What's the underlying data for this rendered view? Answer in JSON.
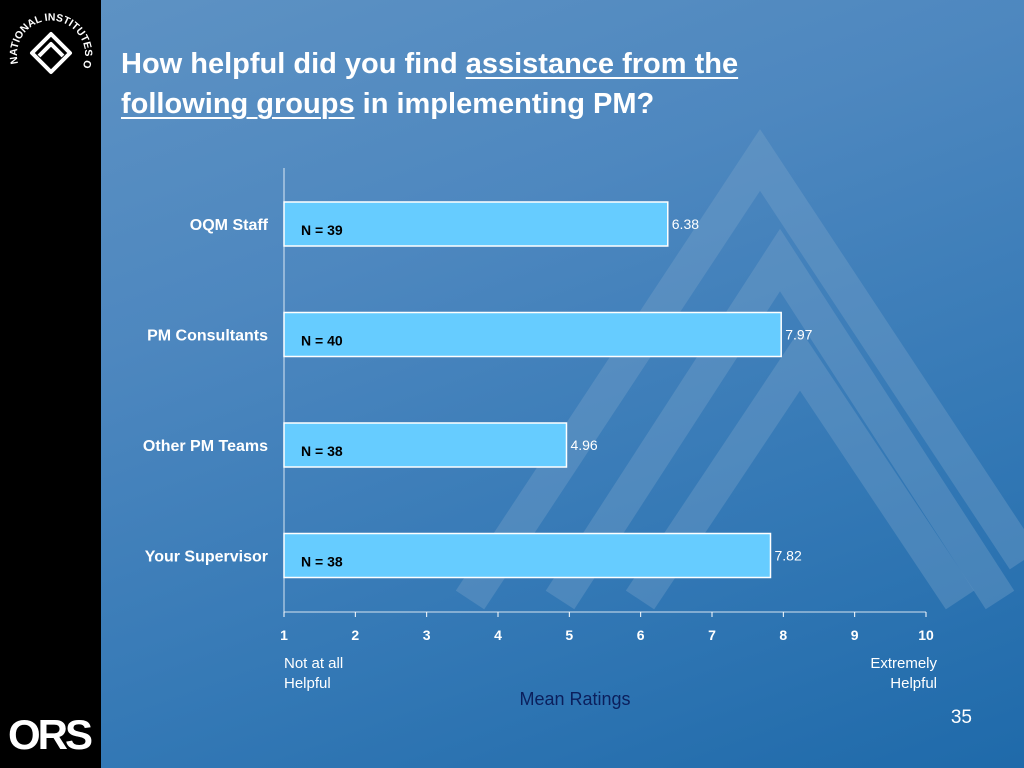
{
  "title": {
    "part1": "How helpful did you find ",
    "underline1": "assistance from the",
    "underline2": "following groups",
    "part2": " in implementing PM?"
  },
  "logos": {
    "seal_text": "NATIONAL INSTITUTES OF HEALTH",
    "ors": "ORS"
  },
  "chart_data": {
    "type": "bar",
    "orientation": "horizontal",
    "categories": [
      "OQM Staff",
      "PM Consultants",
      "Other PM Teams",
      "Your Supervisor"
    ],
    "values": [
      6.38,
      7.97,
      4.96,
      7.82
    ],
    "value_labels": [
      "6.38",
      "7.97",
      "4.96",
      "7.82"
    ],
    "n_labels": [
      "N = 39",
      "N = 40",
      "N = 38",
      "N = 38"
    ],
    "xlim": [
      1,
      10
    ],
    "xticks": [
      1,
      2,
      3,
      4,
      5,
      6,
      7,
      8,
      9,
      10
    ],
    "xlabel": "Mean Ratings",
    "x_min_note": [
      "Not at all",
      "Helpful"
    ],
    "x_max_note": [
      "Extremely",
      "Helpful"
    ],
    "grid": false,
    "legend": "none",
    "bar_color": "#66CCFF",
    "bar_edge_color": "#FFFFFF"
  },
  "page_number": "35",
  "colors": {
    "background": "#4d87bf",
    "left_strip": "#000000",
    "axis_title": "#0b1f5c"
  }
}
